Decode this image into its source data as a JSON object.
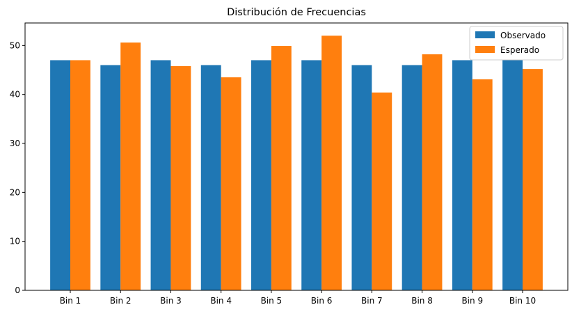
{
  "chart_data": {
    "type": "bar",
    "title": "Distribución de Frecuencias",
    "xlabel": "",
    "ylabel": "",
    "categories": [
      "Bin 1",
      "Bin 2",
      "Bin 3",
      "Bin 4",
      "Bin 5",
      "Bin 6",
      "Bin 7",
      "Bin 8",
      "Bin 9",
      "Bin 10"
    ],
    "series": [
      {
        "name": "Observado",
        "color": "#1f77b4",
        "values": [
          47,
          46,
          47,
          46,
          47,
          47,
          46,
          46,
          47,
          47
        ]
      },
      {
        "name": "Esperado",
        "color": "#ff7f0e",
        "values": [
          47.0,
          50.6,
          45.8,
          43.5,
          49.9,
          52.0,
          40.4,
          48.2,
          43.1,
          45.2
        ]
      }
    ],
    "ylim": [
      0,
      54.6
    ],
    "yticks": [
      0,
      10,
      20,
      30,
      40,
      50
    ],
    "grid": false,
    "legend_position": "top-right"
  }
}
